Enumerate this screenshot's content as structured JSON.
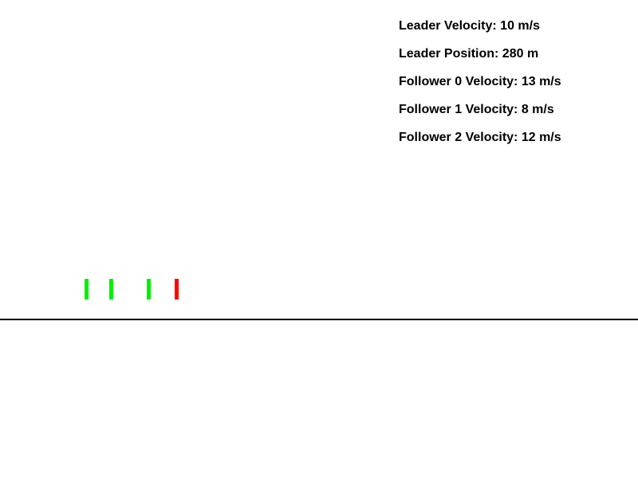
{
  "hud": {
    "leader_velocity": "Leader Velocity: 10 m/s",
    "leader_position": "Leader Position: 280 m",
    "follower_0_velocity": "Follower 0 Velocity: 13 m/s",
    "follower_1_velocity": "Follower 1 Velocity: 8 m/s",
    "follower_2_velocity": "Follower 2 Velocity: 12 m/s"
  },
  "colors": {
    "background": "#ffffff",
    "text": "#000000",
    "leader_vehicle": "#ff0000",
    "follower_vehicle": "#00ee00",
    "road": "#000000"
  }
}
